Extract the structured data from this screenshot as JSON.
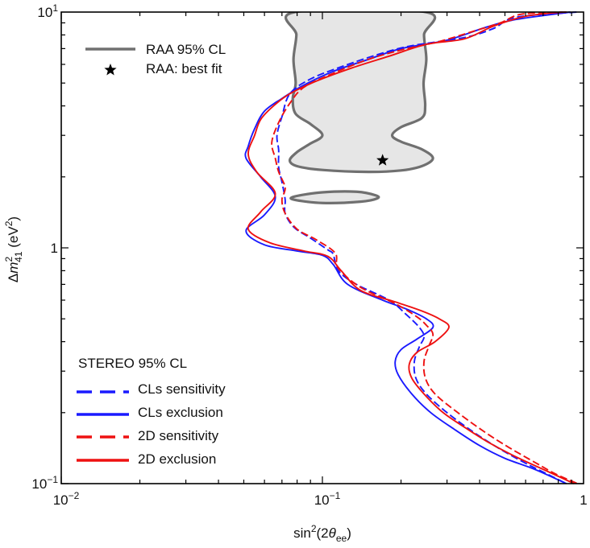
{
  "chart_data": {
    "type": "line",
    "title": "",
    "xlabel": {
      "base": "sin",
      "sup": "2",
      "arg_open": "(2",
      "theta": "θ",
      "sub": "ee",
      "arg_close": ")"
    },
    "ylabel": {
      "delta": "Δ",
      "m": "m",
      "sup": "2",
      "sub": "41",
      "unit": " (eV",
      "unit_sup": "2",
      "unit_close": ")"
    },
    "x_scale": "log",
    "y_scale": "log",
    "xlim": [
      0.01,
      1
    ],
    "ylim": [
      0.1,
      10
    ],
    "x_ticks": [
      {
        "value": 0.01,
        "base": "10",
        "exp": "−2"
      },
      {
        "value": 0.1,
        "base": "10",
        "exp": "−1"
      },
      {
        "value": 1,
        "base": "1",
        "exp": ""
      }
    ],
    "y_ticks": [
      {
        "value": 0.1,
        "base": "10",
        "exp": "−1"
      },
      {
        "value": 1,
        "base": "1",
        "exp": ""
      },
      {
        "value": 10,
        "base": "10",
        "exp": "1"
      }
    ],
    "grid": false,
    "legend_top": {
      "placement": "top-left",
      "entries": [
        {
          "label": "RAA 95% CL",
          "style": "gray-solid"
        },
        {
          "label": "RAA: best fit",
          "style": "star"
        }
      ]
    },
    "legend_bottom": {
      "placement": "bottom-left",
      "title": "STEREO 95% CL",
      "entries": [
        {
          "label": "CLs sensitivity",
          "style": "blue-dashed"
        },
        {
          "label": "CLs exclusion",
          "style": "blue-solid"
        },
        {
          "label": "2D sensitivity",
          "style": "red-dashed"
        },
        {
          "label": "2D exclusion",
          "style": "red-solid"
        }
      ]
    },
    "raa_best_fit": {
      "x": 0.17,
      "y": 2.35
    },
    "raa_region_main": [
      [
        0.0785,
        10
      ],
      [
        0.0795,
        8.0
      ],
      [
        0.0775,
        6.3
      ],
      [
        0.079,
        5.0
      ],
      [
        0.077,
        4.3
      ],
      [
        0.079,
        3.7
      ],
      [
        0.09,
        3.35
      ],
      [
        0.1,
        3.0
      ],
      [
        0.089,
        2.75
      ],
      [
        0.08,
        2.55
      ],
      [
        0.075,
        2.35
      ],
      [
        0.08,
        2.22
      ],
      [
        0.1,
        2.14
      ],
      [
        0.15,
        2.1
      ],
      [
        0.2,
        2.13
      ],
      [
        0.24,
        2.22
      ],
      [
        0.265,
        2.4
      ],
      [
        0.24,
        2.62
      ],
      [
        0.2,
        2.82
      ],
      [
        0.185,
        3.0
      ],
      [
        0.2,
        3.25
      ],
      [
        0.24,
        3.55
      ],
      [
        0.2475,
        4.0
      ],
      [
        0.244,
        5.0
      ],
      [
        0.25,
        6.3
      ],
      [
        0.245,
        8.0
      ],
      [
        0.249,
        10
      ]
    ],
    "raa_region_island": [
      [
        0.078,
        1.65
      ],
      [
        0.1,
        1.72
      ],
      [
        0.135,
        1.73
      ],
      [
        0.16,
        1.67
      ],
      [
        0.162,
        1.62
      ],
      [
        0.14,
        1.57
      ],
      [
        0.1,
        1.55
      ],
      [
        0.078,
        1.6
      ]
    ],
    "series": [
      {
        "name": "CLs sensitivity",
        "color": "#1a1aff",
        "dash": true,
        "points": [
          [
            0.94,
            10
          ],
          [
            0.55,
            9.5
          ],
          [
            0.45,
            8.5
          ],
          [
            0.35,
            7.8
          ],
          [
            0.22,
            7.2
          ],
          [
            0.17,
            6.7
          ],
          [
            0.12,
            5.9
          ],
          [
            0.09,
            5.2
          ],
          [
            0.075,
            4.5
          ],
          [
            0.07,
            3.6
          ],
          [
            0.067,
            3.0
          ],
          [
            0.068,
            2.6
          ],
          [
            0.068,
            2.2
          ],
          [
            0.07,
            1.9
          ],
          [
            0.072,
            1.6
          ],
          [
            0.072,
            1.4
          ],
          [
            0.078,
            1.22
          ],
          [
            0.09,
            1.1
          ],
          [
            0.105,
            0.98
          ],
          [
            0.11,
            0.94
          ],
          [
            0.115,
            0.8
          ],
          [
            0.135,
            0.7
          ],
          [
            0.18,
            0.6
          ],
          [
            0.21,
            0.52
          ],
          [
            0.235,
            0.46
          ],
          [
            0.245,
            0.42
          ],
          [
            0.235,
            0.38
          ],
          [
            0.225,
            0.33
          ],
          [
            0.228,
            0.28
          ],
          [
            0.25,
            0.24
          ],
          [
            0.3,
            0.2
          ],
          [
            0.38,
            0.165
          ],
          [
            0.48,
            0.14
          ],
          [
            0.6,
            0.122
          ],
          [
            0.7,
            0.112
          ],
          [
            0.86,
            0.1
          ]
        ]
      },
      {
        "name": "CLs exclusion",
        "color": "#1a1aff",
        "dash": false,
        "points": [
          [
            0.89,
            10
          ],
          [
            0.55,
            9.3
          ],
          [
            0.42,
            8.6
          ],
          [
            0.3,
            7.6
          ],
          [
            0.2,
            7.0
          ],
          [
            0.15,
            6.3
          ],
          [
            0.11,
            5.6
          ],
          [
            0.085,
            4.9
          ],
          [
            0.07,
            4.3
          ],
          [
            0.06,
            3.8
          ],
          [
            0.055,
            3.2
          ],
          [
            0.052,
            2.7
          ],
          [
            0.051,
            2.4
          ],
          [
            0.058,
            2.0
          ],
          [
            0.066,
            1.65
          ],
          [
            0.06,
            1.38
          ],
          [
            0.051,
            1.18
          ],
          [
            0.06,
            1.03
          ],
          [
            0.08,
            0.97
          ],
          [
            0.1,
            0.93
          ],
          [
            0.11,
            0.85
          ],
          [
            0.125,
            0.7
          ],
          [
            0.17,
            0.6
          ],
          [
            0.21,
            0.55
          ],
          [
            0.25,
            0.5
          ],
          [
            0.265,
            0.46
          ],
          [
            0.23,
            0.41
          ],
          [
            0.2,
            0.37
          ],
          [
            0.19,
            0.33
          ],
          [
            0.195,
            0.29
          ],
          [
            0.22,
            0.24
          ],
          [
            0.26,
            0.2
          ],
          [
            0.32,
            0.17
          ],
          [
            0.4,
            0.145
          ],
          [
            0.5,
            0.128
          ],
          [
            0.65,
            0.115
          ],
          [
            0.86,
            0.1
          ]
        ]
      },
      {
        "name": "2D sensitivity",
        "color": "#ee1111",
        "dash": true,
        "points": [
          [
            0.86,
            10
          ],
          [
            0.58,
            9.8
          ],
          [
            0.48,
            9.0
          ],
          [
            0.38,
            8.3
          ],
          [
            0.28,
            7.5
          ],
          [
            0.2,
            6.9
          ],
          [
            0.15,
            6.3
          ],
          [
            0.11,
            5.5
          ],
          [
            0.085,
            4.8
          ],
          [
            0.075,
            4.1
          ],
          [
            0.068,
            3.4
          ],
          [
            0.064,
            2.8
          ],
          [
            0.066,
            2.4
          ],
          [
            0.068,
            2.1
          ],
          [
            0.072,
            1.8
          ],
          [
            0.07,
            1.6
          ],
          [
            0.072,
            1.4
          ],
          [
            0.08,
            1.2
          ],
          [
            0.095,
            1.08
          ],
          [
            0.112,
            0.95
          ],
          [
            0.115,
            0.82
          ],
          [
            0.14,
            0.68
          ],
          [
            0.19,
            0.58
          ],
          [
            0.23,
            0.51
          ],
          [
            0.25,
            0.47
          ],
          [
            0.265,
            0.43
          ],
          [
            0.255,
            0.38
          ],
          [
            0.245,
            0.33
          ],
          [
            0.248,
            0.28
          ],
          [
            0.27,
            0.24
          ],
          [
            0.33,
            0.2
          ],
          [
            0.42,
            0.165
          ],
          [
            0.52,
            0.142
          ],
          [
            0.66,
            0.122
          ],
          [
            0.78,
            0.11
          ],
          [
            0.95,
            0.1
          ]
        ]
      },
      {
        "name": "2D exclusion",
        "color": "#ee1111",
        "dash": false,
        "points": [
          [
            0.83,
            10
          ],
          [
            0.6,
            9.6
          ],
          [
            0.45,
            8.7
          ],
          [
            0.35,
            7.7
          ],
          [
            0.25,
            7.3
          ],
          [
            0.18,
            6.5
          ],
          [
            0.13,
            5.8
          ],
          [
            0.095,
            5.1
          ],
          [
            0.075,
            4.5
          ],
          [
            0.065,
            4.0
          ],
          [
            0.058,
            3.5
          ],
          [
            0.055,
            3.0
          ],
          [
            0.052,
            2.5
          ],
          [
            0.056,
            2.1
          ],
          [
            0.066,
            1.7
          ],
          [
            0.058,
            1.42
          ],
          [
            0.052,
            1.2
          ],
          [
            0.063,
            1.05
          ],
          [
            0.085,
            0.97
          ],
          [
            0.105,
            0.92
          ],
          [
            0.118,
            0.8
          ],
          [
            0.14,
            0.66
          ],
          [
            0.19,
            0.59
          ],
          [
            0.24,
            0.54
          ],
          [
            0.28,
            0.5
          ],
          [
            0.305,
            0.46
          ],
          [
            0.27,
            0.4
          ],
          [
            0.23,
            0.36
          ],
          [
            0.215,
            0.32
          ],
          [
            0.22,
            0.28
          ],
          [
            0.245,
            0.24
          ],
          [
            0.29,
            0.2
          ],
          [
            0.36,
            0.17
          ],
          [
            0.44,
            0.148
          ],
          [
            0.55,
            0.13
          ],
          [
            0.7,
            0.115
          ],
          [
            0.92,
            0.1
          ]
        ]
      }
    ]
  }
}
